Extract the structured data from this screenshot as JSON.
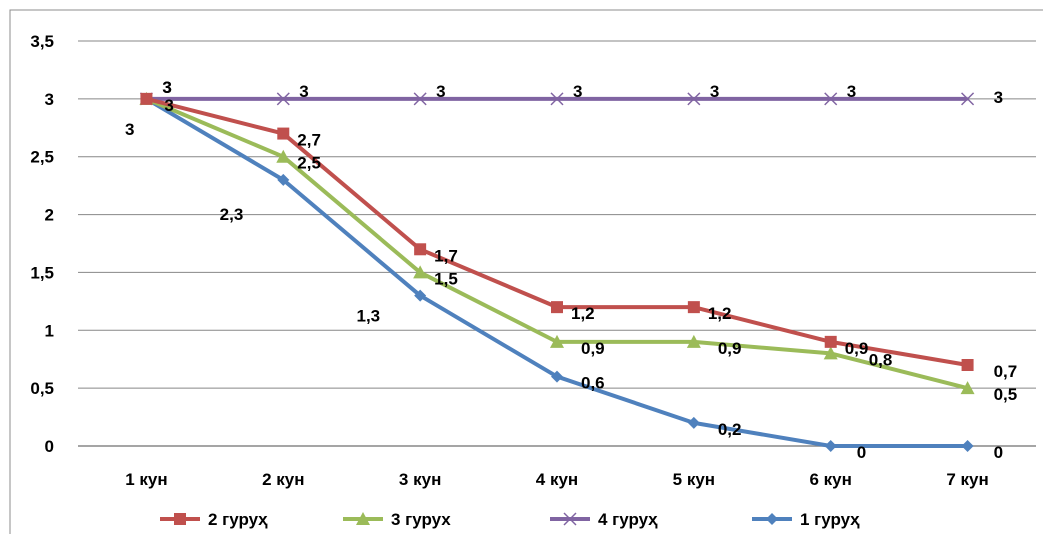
{
  "chart_data": {
    "type": "line",
    "categories": [
      "1 кун",
      "2 кун",
      "3 кун",
      "4 кун",
      "5 кун",
      "6 кун",
      "7 кун"
    ],
    "ylim": [
      0,
      3.5
    ],
    "yticks": [
      "0",
      "0,5",
      "1",
      "1,5",
      "2",
      "2,5",
      "3",
      "3,5"
    ],
    "grid": true,
    "legend_position": "bottom",
    "series": [
      {
        "name": "2 гуруҳ",
        "color": "#c0504d",
        "marker": "square",
        "values": [
          3,
          2.7,
          1.7,
          1.2,
          1.2,
          0.9,
          0.7
        ],
        "labels": [
          "3",
          "2,7",
          "1,7",
          "1,2",
          "1,2",
          "0,9",
          "0,7"
        ]
      },
      {
        "name": "3 гурух",
        "color": "#9bbb59",
        "marker": "triangle",
        "values": [
          3,
          2.5,
          1.5,
          0.9,
          0.9,
          0.8,
          0.5
        ],
        "labels": [
          "3",
          "2,5",
          "1,5",
          "0,9",
          "0,9",
          "0,8",
          "0,5"
        ]
      },
      {
        "name": "4 гуруҳ",
        "color": "#8064a2",
        "marker": "x",
        "values": [
          3,
          3,
          3,
          3,
          3,
          3,
          3
        ],
        "labels": [
          "3",
          "3",
          "3",
          "3",
          "3",
          "3",
          "3"
        ]
      },
      {
        "name": "1 гуруҳ",
        "color": "#4f81bd",
        "marker": "diamond",
        "values": [
          3,
          2.3,
          1.3,
          0.6,
          0.2,
          0,
          0
        ],
        "labels": [
          "3",
          "2,3",
          "1,3",
          "0,6",
          "0,2",
          "0",
          "0"
        ]
      }
    ]
  }
}
